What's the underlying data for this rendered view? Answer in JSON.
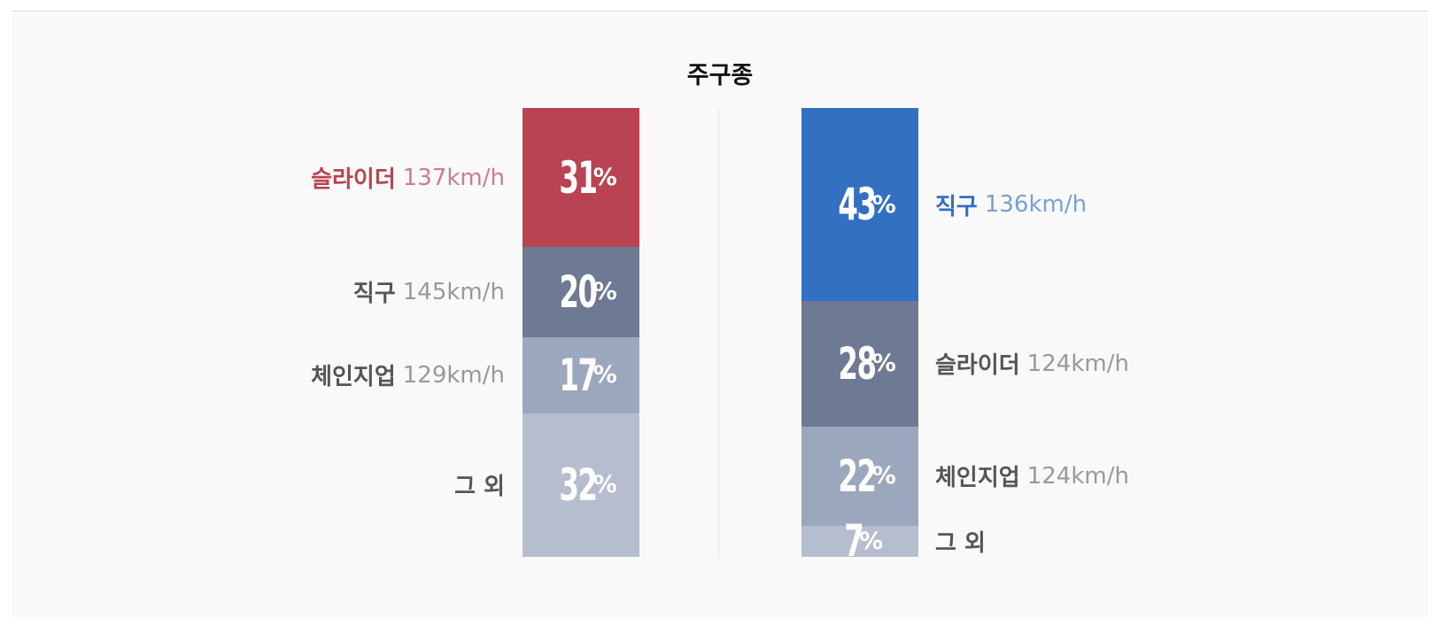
{
  "title": "주구종",
  "colors": {
    "highlight_left": "#b94352",
    "highlight_left_text": "#b94352",
    "highlight_left_speed": "#c98088",
    "highlight_right": "#3270c1",
    "highlight_right_text": "#3270c1",
    "highlight_right_speed": "#7aa0d2",
    "seg2": "#6e7993",
    "seg3": "#9ba7bc",
    "seg4": "#b5bdcf",
    "label_name": "#555555",
    "label_speed": "#999999"
  },
  "chart_data": [
    {
      "type": "bar",
      "stacked": true,
      "side": "left",
      "segments": [
        {
          "name": "슬라이더",
          "speed": "137km/h",
          "value": 31,
          "highlight": true
        },
        {
          "name": "직구",
          "speed": "145km/h",
          "value": 20
        },
        {
          "name": "체인지업",
          "speed": "129km/h",
          "value": 17
        },
        {
          "name": "그 외",
          "speed": "",
          "value": 32
        }
      ]
    },
    {
      "type": "bar",
      "stacked": true,
      "side": "right",
      "segments": [
        {
          "name": "직구",
          "speed": "136km/h",
          "value": 43,
          "highlight": true
        },
        {
          "name": "슬라이더",
          "speed": "124km/h",
          "value": 28
        },
        {
          "name": "체인지업",
          "speed": "124km/h",
          "value": 22
        },
        {
          "name": "그 외",
          "speed": "",
          "value": 7
        }
      ]
    }
  ]
}
